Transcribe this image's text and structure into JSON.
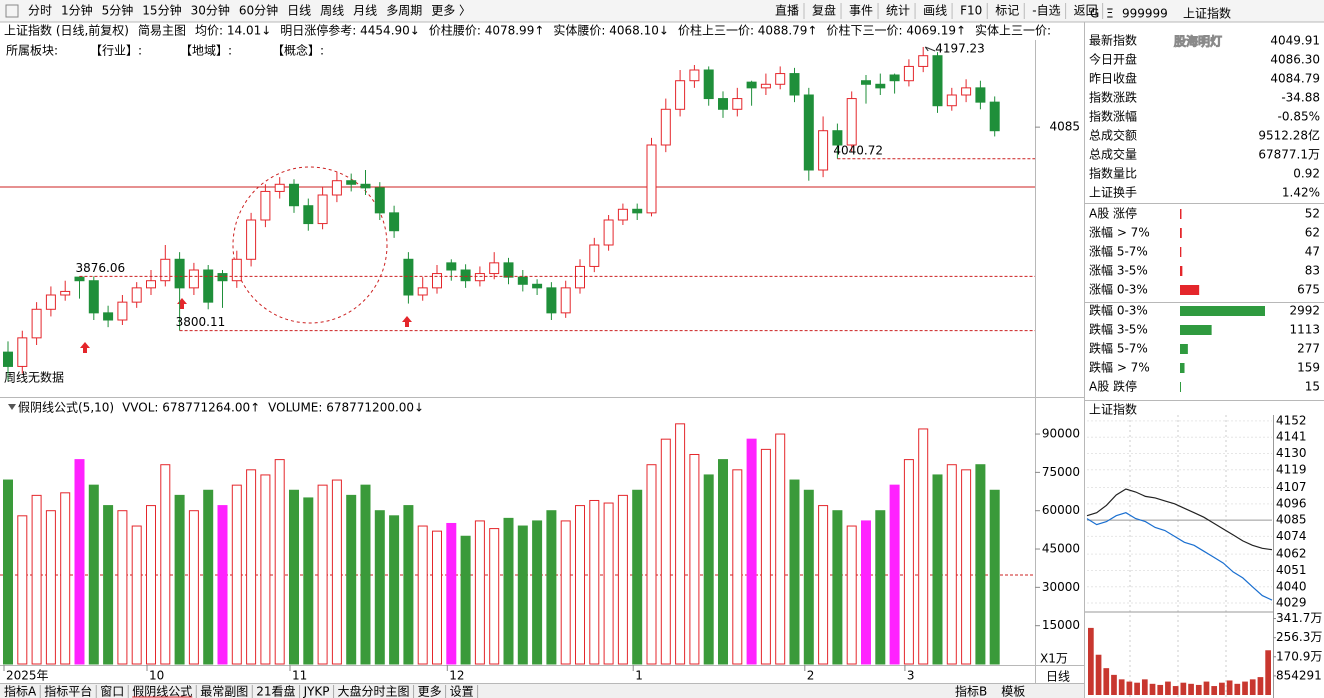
{
  "toolbar": {
    "periods": [
      "分时",
      "1分钟",
      "5分钟",
      "15分钟",
      "30分钟",
      "60分钟",
      "日线",
      "周线",
      "月线",
      "多周期",
      "更多 〉"
    ],
    "selected": 6,
    "selected_color": "#e4262b",
    "buttons": [
      "直播",
      "复盘",
      "事件",
      "统计",
      "画线",
      "F10",
      "标记",
      "-自选",
      "返回"
    ]
  },
  "info_line": [
    {
      "text": "上证指数 (日线,前复权)",
      "color": "#000000"
    },
    {
      "text": "简易主图",
      "color": "#000000"
    },
    {
      "text": "均价: 14.01↓",
      "color": "#e4262b"
    },
    {
      "text": "明日涨停参考: 4454.90↓",
      "color": "#e4262b"
    },
    {
      "text": "价柱腰价: 4078.99↑",
      "color": "#e4262b"
    },
    {
      "text": "实体腰价: 4068.10↓",
      "color": "#e4262b"
    },
    {
      "text": "价柱上三一价: 4088.79↑",
      "color": "#e4262b"
    },
    {
      "text": "价柱下三一价: 4069.19↑",
      "color": "#e4262b"
    },
    {
      "text": "实体上三一价:",
      "color": "#e4262b"
    }
  ],
  "board_line": [
    "所属板块:",
    "【行业】:",
    "【地域】:",
    "【概念】:"
  ],
  "main_chart": {
    "type": "candlestick",
    "note": "周线无数据",
    "categories": [
      "2025年",
      null,
      null,
      null,
      null,
      null,
      null,
      null,
      null,
      null,
      "10",
      null,
      null,
      null,
      null,
      null,
      null,
      null,
      null,
      null,
      "11",
      null,
      null,
      null,
      null,
      null,
      null,
      null,
      null,
      null,
      null,
      "12",
      null,
      null,
      null,
      null,
      null,
      null,
      null,
      null,
      null,
      null,
      null,
      null,
      "1",
      null,
      null,
      null,
      null,
      null,
      null,
      null,
      null,
      null,
      null,
      null,
      "2",
      null,
      null,
      null,
      null,
      null,
      null,
      "3",
      null,
      null,
      null,
      null,
      null,
      null
    ],
    "open": [
      3770,
      3750,
      3790,
      3830,
      3850,
      3875,
      3870,
      3825,
      3815,
      3840,
      3860,
      3870,
      3900,
      3860,
      3885,
      3880,
      3870,
      3900,
      3955,
      3995,
      4005,
      3975,
      3950,
      3990,
      4010,
      4005,
      4000,
      3965,
      3900,
      3850,
      3860,
      3895,
      3885,
      3870,
      3880,
      3895,
      3875,
      3865,
      3860,
      3825,
      3860,
      3890,
      3920,
      3955,
      3970,
      3965,
      4060,
      4110,
      4150,
      4165,
      4125,
      4110,
      4148,
      4140,
      4145,
      4160,
      4130,
      4025,
      4080,
      4060,
      4150,
      4145,
      4158,
      4150,
      4170,
      4185,
      4115,
      4130,
      4140,
      4120
    ],
    "high": [
      3785,
      3800,
      3840,
      3862,
      3870,
      3876.06,
      3876,
      3835,
      3850,
      3868,
      3885,
      3920,
      3910,
      3895,
      3892,
      3885,
      3912,
      3965,
      4005,
      4015,
      4012,
      3985,
      4002,
      4022,
      4020,
      4025,
      4008,
      3975,
      3910,
      3875,
      3892,
      3900,
      3893,
      3890,
      3910,
      3902,
      3885,
      3872,
      3868,
      3870,
      3900,
      3930,
      3962,
      3978,
      3978,
      4070,
      4125,
      4165,
      4172,
      4170,
      4135,
      4140,
      4150,
      4160,
      4170,
      4168,
      4140,
      4100,
      4090,
      4135,
      4158,
      4160,
      4160,
      4180,
      4197.23,
      4190,
      4140,
      4152,
      4150,
      4128
    ],
    "low": [
      3730,
      3740,
      3780,
      3820,
      3842,
      3845,
      3815,
      3805,
      3808,
      3832,
      3850,
      3862,
      3800.11,
      3850,
      3830,
      3832,
      3860,
      3890,
      3945,
      3985,
      3965,
      3940,
      3942,
      3980,
      3995,
      3990,
      3955,
      3930,
      3838,
      3842,
      3852,
      3870,
      3860,
      3862,
      3872,
      3865,
      3855,
      3850,
      3815,
      3818,
      3852,
      3882,
      3912,
      3948,
      3955,
      3960,
      4050,
      4100,
      4140,
      4115,
      4098,
      4100,
      4115,
      4130,
      4138,
      4120,
      4010,
      4015,
      4040.72,
      4050,
      4118,
      4130,
      4132,
      4142,
      4162,
      4105,
      4108,
      4120,
      4110,
      4072
    ],
    "close": [
      3750,
      3790,
      3830,
      3850,
      3855,
      3870,
      3825,
      3815,
      3840,
      3860,
      3870,
      3900,
      3860,
      3885,
      3840,
      3870,
      3900,
      3955,
      3995,
      4005,
      3975,
      3950,
      3990,
      4010,
      4005,
      4000,
      3965,
      3940,
      3850,
      3860,
      3880,
      3885,
      3870,
      3880,
      3895,
      3875,
      3865,
      3860,
      3825,
      3860,
      3890,
      3920,
      3955,
      3970,
      3965,
      4060,
      4110,
      4150,
      4165,
      4125,
      4110,
      4125,
      4140,
      4145,
      4160,
      4130,
      4025,
      4080,
      4060,
      4125,
      4145,
      4140,
      4150,
      4170,
      4185,
      4115,
      4130,
      4140,
      4120,
      4080
    ],
    "up_color": "#e4262b",
    "down_color": "#1f8f3a",
    "ylim": [
      3710,
      4207
    ],
    "yticks": [
      4085
    ]
  },
  "volume_chart": {
    "type": "bar",
    "header": [
      {
        "text": "假阴线公式(5,10)",
        "color": "#000000"
      },
      {
        "text": "VVOL: 678771264.00↑",
        "color": "#000000"
      },
      {
        "text": "VOLUME: 678771200.00↓",
        "color": "#1a6fd0"
      }
    ],
    "unit_label": "X1万",
    "values": [
      72000,
      58000,
      66000,
      60000,
      67000,
      80000,
      70000,
      62000,
      60000,
      54000,
      62000,
      78000,
      66000,
      60000,
      68000,
      62000,
      70000,
      76000,
      74000,
      80000,
      68000,
      65000,
      70000,
      72000,
      66000,
      70000,
      60000,
      58000,
      62000,
      54000,
      52000,
      55000,
      50000,
      56000,
      53000,
      57000,
      54000,
      56000,
      60000,
      56000,
      62000,
      64000,
      63000,
      66000,
      68000,
      78000,
      88000,
      94000,
      82000,
      74000,
      80000,
      76000,
      88000,
      84000,
      90000,
      72000,
      68000,
      62000,
      60000,
      54000,
      56000,
      60000,
      70000,
      80000,
      92000,
      74000,
      78000,
      76000,
      78000,
      68000
    ],
    "up_color": "#e4262b",
    "down_color": "#3a9a3a",
    "fake_down_color": "#ff22ff",
    "ylim": [
      0,
      95500
    ],
    "yticks": [
      15000,
      30000,
      45000,
      60000,
      75000,
      90000
    ]
  },
  "bottom_bar": {
    "period_label": "日线",
    "tabs": [
      "指标A",
      "指标平台",
      "窗口",
      "假阴线公式",
      "最常副图",
      "21看盘",
      "JYKP",
      "大盘分时主图",
      "更多",
      "设置"
    ],
    "selected": 3,
    "right_tabs": [
      "指标B",
      "模板"
    ]
  },
  "quote_panel": {
    "header": {
      "flag": "G",
      "menu": "Ξ",
      "code": "999999",
      "name": "上证指数",
      "watermark": "股海明灯"
    },
    "rows": [
      {
        "label": "最新指数",
        "value": "4049.91",
        "color": "#2f9a3f"
      },
      {
        "label": "今日开盘",
        "value": "4086.30",
        "color": "#e4262b"
      },
      {
        "label": "昨日收盘",
        "value": "4084.79",
        "color": "#000000"
      },
      {
        "label": "指数涨跌",
        "value": "-34.88",
        "color": "#2f9a3f"
      },
      {
        "label": "指数涨幅",
        "value": "-0.85%",
        "color": "#2f9a3f"
      },
      {
        "label": "总成交额",
        "value": "9512.28亿",
        "color": "#000000"
      },
      {
        "label": "总成交量",
        "value": "67877.1万",
        "color": "#000000"
      },
      {
        "label": "指数量比",
        "value": "0.92",
        "color": "#2f9a3f"
      },
      {
        "label": "上证换手",
        "value": "1.42%",
        "color": "#000000"
      }
    ],
    "distribution": [
      {
        "label": "A股 涨停",
        "value": 52,
        "color": "#e4262b"
      },
      {
        "label": "涨幅 > 7%",
        "value": 62,
        "color": "#e4262b"
      },
      {
        "label": "涨幅 5-7%",
        "value": 47,
        "color": "#e4262b"
      },
      {
        "label": "涨幅 3-5%",
        "value": 83,
        "color": "#e4262b"
      },
      {
        "label": "涨幅 0-3%",
        "value": 675,
        "color": "#e4262b"
      },
      {
        "label": "跌幅 0-3%",
        "value": 2992,
        "color": "#2f9a3f"
      },
      {
        "label": "跌幅 3-5%",
        "value": 1113,
        "color": "#2f9a3f"
      },
      {
        "label": "跌幅 5-7%",
        "value": 277,
        "color": "#2f9a3f"
      },
      {
        "label": "跌幅 > 7%",
        "value": 159,
        "color": "#2f9a3f"
      },
      {
        "label": "A股 跌停",
        "value": 15,
        "color": "#2f9a3f"
      }
    ]
  },
  "mini_chart": {
    "type": "line",
    "title": "上证指数",
    "series": [
      {
        "color": "#222222",
        "values": [
          4088,
          4090,
          4095,
          4102,
          4106,
          4104,
          4101,
          4100,
          4098,
          4096,
          4093,
          4090,
          4087,
          4083,
          4079,
          4075,
          4071,
          4068,
          4066,
          4065
        ]
      },
      {
        "color": "#1a6fd0",
        "values": [
          4086,
          4082,
          4084,
          4088,
          4090,
          4086,
          4084,
          4080,
          4078,
          4074,
          4070,
          4068,
          4064,
          4060,
          4056,
          4050,
          4046,
          4040,
          4034,
          4031
        ]
      }
    ],
    "ylim": [
      4024.3,
      4156
    ],
    "yticks": [
      4029,
      4040,
      4051,
      4062,
      4074,
      4085,
      4096,
      4107,
      4119,
      4130,
      4141,
      4152
    ],
    "up_color": "#e4262b",
    "down_color": "#2f9a3f",
    "volume": {
      "values": [
        300,
        180,
        120,
        90,
        70,
        60,
        55,
        70,
        50,
        45,
        60,
        40,
        55,
        50,
        45,
        60,
        40,
        55,
        65,
        50,
        60,
        70,
        80,
        200
      ],
      "color": "#c8372f",
      "ylim": [
        0,
        380
      ],
      "yticks": [
        {
          "value": 85.4291,
          "label": "854291"
        },
        {
          "value": 170.9,
          "label": "170.9万"
        },
        {
          "value": 256.3,
          "label": "256.3万"
        },
        {
          "value": 341.7,
          "label": "341.7万"
        }
      ]
    }
  }
}
